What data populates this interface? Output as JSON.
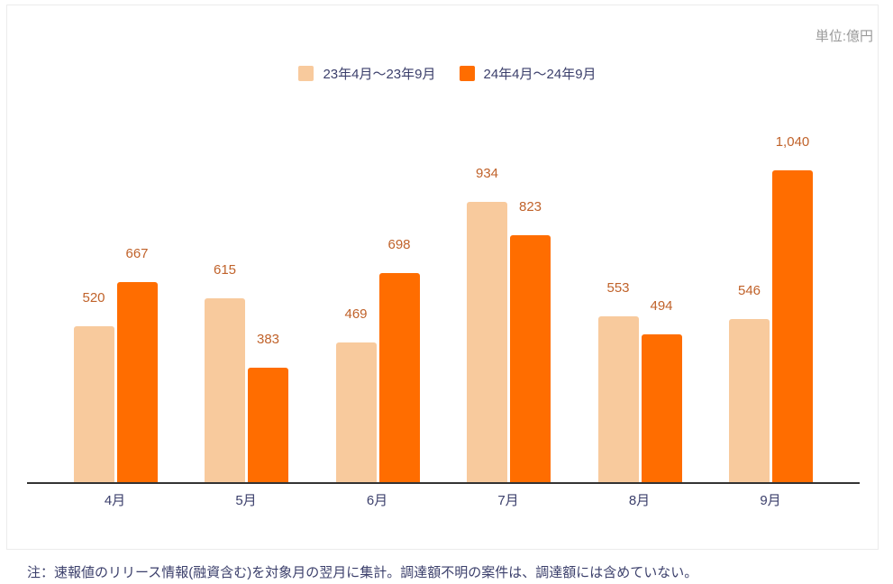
{
  "chart_data": {
    "type": "bar",
    "title": "",
    "unit_label": "単位:億円",
    "categories": [
      "4月",
      "5月",
      "6月",
      "7月",
      "8月",
      "9月"
    ],
    "series": [
      {
        "name": "23年4月～23年9月",
        "color": "#f8ca9d",
        "values": [
          520,
          615,
          469,
          934,
          553,
          546
        ]
      },
      {
        "name": "24年4月～24年9月",
        "color": "#ff6d00",
        "values": [
          667,
          383,
          698,
          823,
          494,
          1040
        ]
      }
    ],
    "value_labels": [
      [
        "520",
        "615",
        "469",
        "934",
        "553",
        "546"
      ],
      [
        "667",
        "383",
        "698",
        "823",
        "494",
        "1,040"
      ]
    ],
    "xlabel": "",
    "ylabel": "",
    "ylim": [
      0,
      1300
    ],
    "grid": false,
    "legend_position": "top",
    "data_label_color": "#c0622a"
  },
  "legend": [
    {
      "label": "23年4月～23年9月",
      "color": "#f8ca9d"
    },
    {
      "label": "24年4月～24年9月",
      "color": "#ff6d00"
    }
  ],
  "unit": "単位:億円",
  "note": "注：速報値のリリース情報(融資含む)を対象月の翌月に集計。調達額不明の案件は、調達額には含めていない。"
}
